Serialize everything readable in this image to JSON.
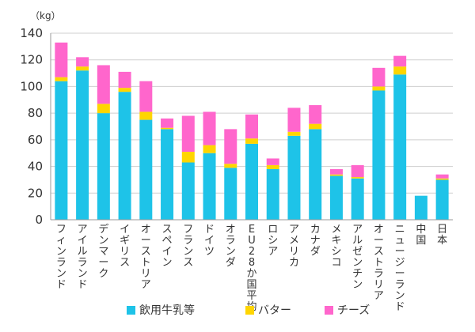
{
  "chart_data": {
    "type": "bar",
    "stacked": true,
    "unit_label": "（kg）",
    "ylim": [
      0,
      140
    ],
    "y_ticks": [
      0,
      20,
      40,
      60,
      80,
      100,
      120,
      140
    ],
    "grid": true,
    "legend_position": "bottom",
    "categories": [
      "フィンランド",
      "アイルランド",
      "デンマーク",
      "イギリス",
      "オーストリア",
      "スペイン",
      "フランス",
      "ドイツ",
      "オランダ",
      "EU28か国平均",
      "ロシア",
      "アメリカ",
      "カナダ",
      "メキシコ",
      "アルゼンチン",
      "オーストラリア",
      "ニュージーランド",
      "中国",
      "日本"
    ],
    "series": [
      {
        "name": "飲用牛乳等",
        "color": "#1ec3e8",
        "values": [
          104,
          112,
          80,
          96,
          75,
          68,
          43,
          50,
          39,
          57,
          38,
          63,
          68,
          33,
          31,
          97,
          109,
          18,
          30
        ]
      },
      {
        "name": "バター",
        "color": "#ffd500",
        "values": [
          3,
          3,
          7,
          3,
          6,
          1,
          8,
          6,
          3,
          4,
          3,
          3,
          4,
          1,
          1,
          3,
          6,
          0,
          1
        ]
      },
      {
        "name": "チーズ",
        "color": "#ff66cc",
        "values": [
          26,
          7,
          29,
          12,
          23,
          7,
          27,
          25,
          26,
          18,
          5,
          18,
          14,
          4,
          9,
          14,
          8,
          0,
          3
        ]
      }
    ]
  }
}
